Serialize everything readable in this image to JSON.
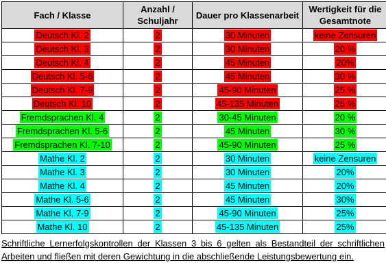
{
  "table": {
    "headers": {
      "fach": "Fach / Klasse",
      "anzahl": "Anzahl / Schuljahr",
      "dauer": "Dauer pro Klassenarbeit",
      "wertigkeit": "Wertigkeit für die Gesamtnote"
    },
    "rows": [
      {
        "fach": "Deutsch Kl. 2",
        "anzahl": "2",
        "dauer": "30 Minuten",
        "wertigkeit": "keine Zensuren",
        "color": "red"
      },
      {
        "fach": "Deutsch Kl. 3",
        "anzahl": "2",
        "dauer": "30 Minuten",
        "wertigkeit": "20 %",
        "color": "red"
      },
      {
        "fach": "Deutsch Kl. 4",
        "anzahl": "2",
        "dauer": "45 Minuten",
        "wertigkeit": "20%",
        "color": "red"
      },
      {
        "fach": "Deutsch Kl. 5-6",
        "anzahl": "2",
        "dauer": "45 Minuten",
        "wertigkeit": "30 %",
        "color": "red"
      },
      {
        "fach": "Deutsch Kl. 7-9",
        "anzahl": "2",
        "dauer": "45-90 Minuten",
        "wertigkeit": "25 %",
        "color": "red"
      },
      {
        "fach": "Deutsch Kl. 10",
        "anzahl": "2",
        "dauer": "45-135 Minuten",
        "wertigkeit": "25 %",
        "color": "red"
      },
      {
        "fach": "Fremdsprachen Kl. 4",
        "anzahl": "2",
        "dauer": "30-45 Minuten",
        "wertigkeit": "20 %",
        "color": "green"
      },
      {
        "fach": "Fremdsprachen Kl. 5-6",
        "anzahl": "2",
        "dauer": "45 Minuten",
        "wertigkeit": "30 %",
        "color": "green"
      },
      {
        "fach": "Fremdsprachen Kl. 7-10",
        "anzahl": "2",
        "dauer": "45-90 Minuten",
        "wertigkeit": "25 %",
        "color": "green"
      },
      {
        "fach": "Mathe Kl. 2",
        "anzahl": "2",
        "dauer": "30 Minuten",
        "wertigkeit": "keine Zensuren",
        "color": "cyan"
      },
      {
        "fach": "Mathe Kl. 3",
        "anzahl": "2",
        "dauer": "30 Minuten",
        "wertigkeit": "20%",
        "color": "cyan"
      },
      {
        "fach": "Mathe Kl. 4",
        "anzahl": "2",
        "dauer": "45 Minuten",
        "wertigkeit": "20%",
        "color": "cyan"
      },
      {
        "fach": "Mathe Kl. 5-6",
        "anzahl": "2",
        "dauer": "45 Minuten",
        "wertigkeit": "30%",
        "color": "cyan"
      },
      {
        "fach": "Mathe Kl. 7-9",
        "anzahl": "2",
        "dauer": "45-90 Minuten",
        "wertigkeit": "25%",
        "color": "cyan"
      },
      {
        "fach": "Mathe Kl. 10",
        "anzahl": "2",
        "dauer": "45-135 Minuten",
        "wertigkeit": "25%",
        "color": "cyan"
      }
    ]
  },
  "footnote": "Schriftliche Lernerfolgskontrollen der Klassen 3 bis 6 gelten als Bestandteil der schriftlichen Arbeiten und fließen mit deren Gewichtung in die abschließende Leistungsbewertung ein.",
  "colors": {
    "red": "#ff0000",
    "green": "#00ff00",
    "cyan": "#00ffff",
    "header_bg": "#d9d9d9"
  }
}
